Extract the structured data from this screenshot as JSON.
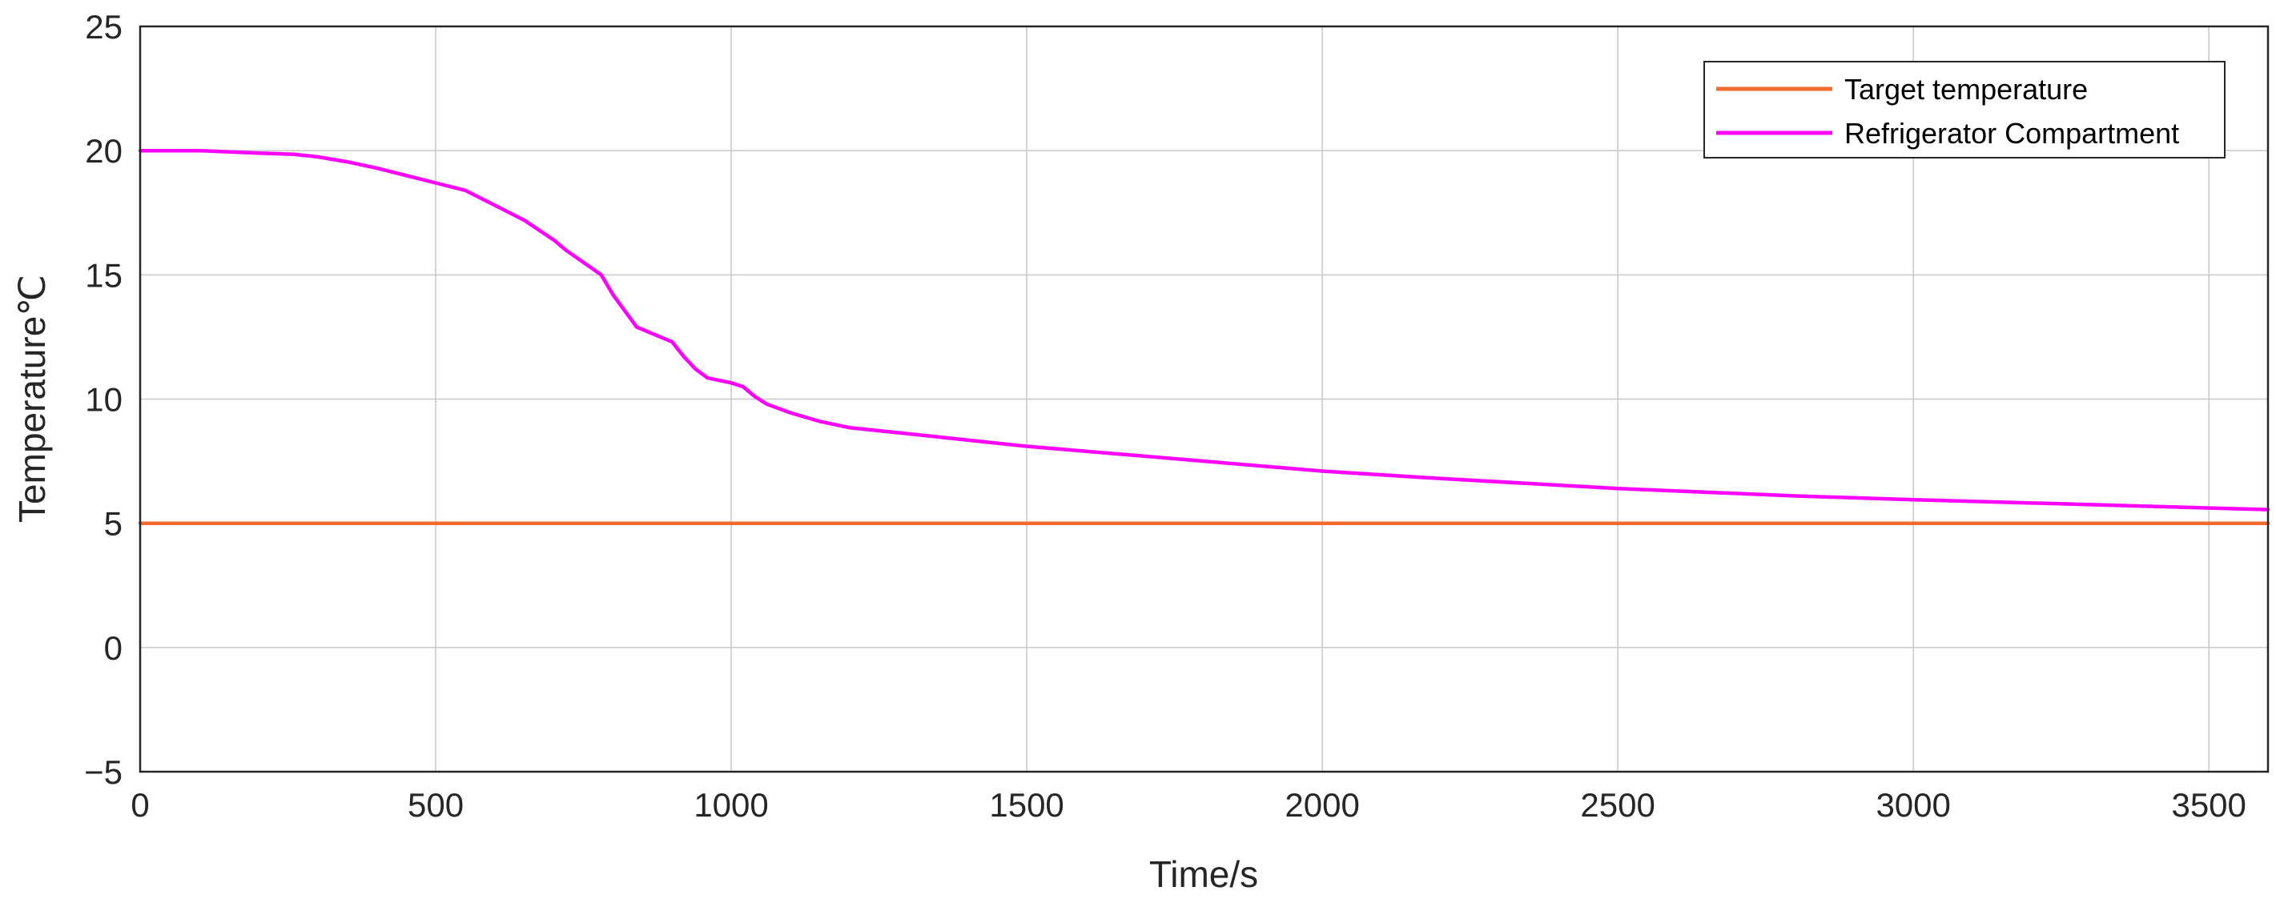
{
  "chart_data": {
    "type": "line",
    "xlabel": "Time/s",
    "ylabel": "Temperature℃",
    "xlim": [
      0,
      3600
    ],
    "ylim": [
      -5,
      25
    ],
    "xticks": [
      0,
      500,
      1000,
      1500,
      2000,
      2500,
      3000,
      3500
    ],
    "yticks": [
      -5,
      0,
      5,
      10,
      15,
      20,
      25
    ],
    "xtick_labels": [
      "0",
      "500",
      "1000",
      "1500",
      "2000",
      "2500",
      "3000",
      "3500"
    ],
    "ytick_labels": [
      "−5",
      "0",
      "5",
      "10",
      "15",
      "20",
      "25"
    ],
    "grid": true,
    "legend_position": "top-right",
    "series": [
      {
        "name": "Target temperature",
        "color": "#f26a2d",
        "x": [
          0,
          3600
        ],
        "y": [
          5,
          5
        ]
      },
      {
        "name": "Refrigerator Compartment",
        "color": "#ff00ff",
        "x": [
          0,
          100,
          200,
          260,
          300,
          350,
          400,
          450,
          500,
          550,
          600,
          650,
          700,
          720,
          780,
          800,
          840,
          870,
          900,
          920,
          940,
          960,
          980,
          1000,
          1020,
          1040,
          1060,
          1100,
          1150,
          1200,
          1300,
          1400,
          1500,
          1600,
          1800,
          2000,
          2200,
          2500,
          2800,
          3000,
          3300,
          3600
        ],
        "y": [
          20.0,
          20.0,
          19.9,
          19.85,
          19.75,
          19.55,
          19.3,
          19.0,
          18.7,
          18.4,
          17.8,
          17.2,
          16.4,
          16.0,
          15.0,
          14.2,
          12.9,
          12.6,
          12.3,
          11.7,
          11.2,
          10.85,
          10.75,
          10.65,
          10.5,
          10.1,
          9.8,
          9.45,
          9.1,
          8.85,
          8.6,
          8.35,
          8.1,
          7.9,
          7.5,
          7.1,
          6.8,
          6.4,
          6.1,
          5.95,
          5.75,
          5.55
        ]
      }
    ]
  }
}
